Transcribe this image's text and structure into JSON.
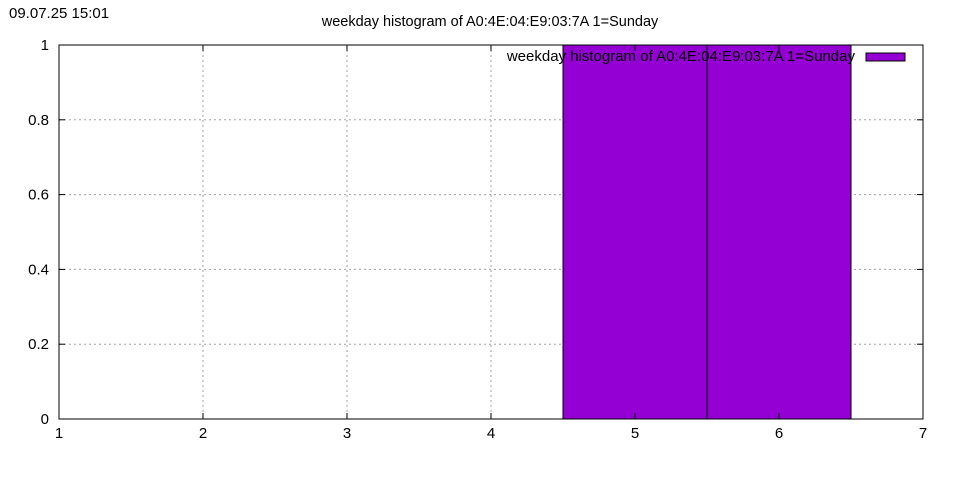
{
  "timestamp": "09.07.25 15:01",
  "chart_data": {
    "type": "bar",
    "title": "weekday histogram of A0:4E:04:E9:03:7A 1=Sunday",
    "legend": {
      "label": "weekday histogram of A0:4E:04:E9:03:7A 1=Sunday",
      "placement": "top-right"
    },
    "xlim": [
      1,
      7
    ],
    "ylim": [
      0,
      1
    ],
    "xticks": [
      "1",
      "2",
      "3",
      "4",
      "5",
      "6",
      "7"
    ],
    "yticks": [
      "0",
      "0.2",
      "0.4",
      "0.6",
      "0.8",
      "1"
    ],
    "grid": true,
    "bar_width": 1,
    "bars": [
      {
        "x": 5,
        "value": 1
      },
      {
        "x": 6,
        "value": 1
      }
    ],
    "bar_color": "#9400d3"
  }
}
